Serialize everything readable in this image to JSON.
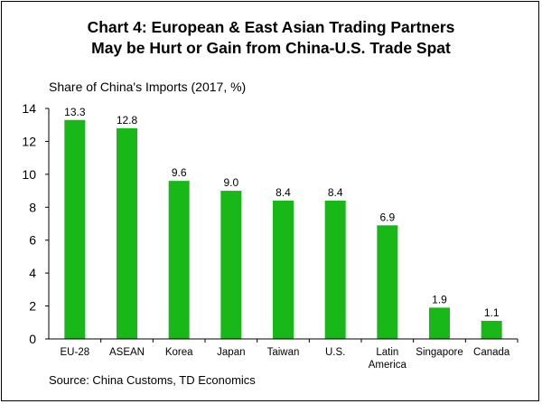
{
  "chart_data": {
    "type": "bar",
    "title": "Chart 4: European & East Asian Trading Partners",
    "title_line2": "May be Hurt or Gain from China-U.S. Trade Spat",
    "ylabel": "Share of China's Imports (2017, %)",
    "source": "Source: China Customs, TD Economics",
    "categories": [
      "EU-28",
      "ASEAN",
      "Korea",
      "Japan",
      "Taiwan",
      "U.S.",
      "Latin America",
      "Singapore",
      "Canada"
    ],
    "values": [
      13.3,
      12.8,
      9.6,
      9.0,
      8.4,
      8.4,
      6.9,
      1.9,
      1.1
    ],
    "value_labels": [
      "13.3",
      "12.8",
      "9.6",
      "9.0",
      "8.4",
      "8.4",
      "6.9",
      "1.9",
      "1.1"
    ],
    "ylim": [
      0,
      14
    ],
    "yticks": [
      0,
      2,
      4,
      6,
      8,
      10,
      12,
      14
    ],
    "grid": false,
    "legend": "none",
    "bar_color": "#19b819"
  }
}
